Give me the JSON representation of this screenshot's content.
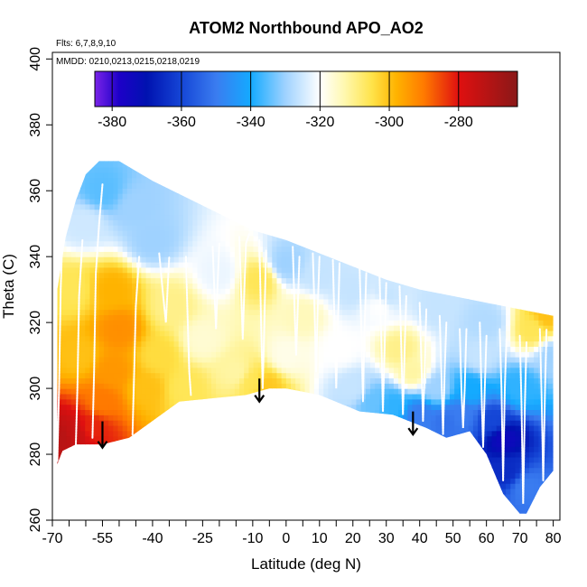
{
  "chart_data": {
    "type": "heatmap",
    "title": "ATOM2 Northbound APO_AO2",
    "flights_note": "Flts: 6,7,8,9,10",
    "dates_note": "MMDD: 0210,0213,0215,0218,0219",
    "xlabel": "Latitude (deg N)",
    "ylabel": "Theta (C)",
    "xlim": [
      -70,
      82
    ],
    "ylim": [
      260,
      402
    ],
    "x_ticks": [
      -70,
      -55,
      -40,
      -25,
      -10,
      0,
      10,
      20,
      30,
      40,
      50,
      60,
      70,
      80
    ],
    "x_minor_ticks": [
      -65,
      -60,
      -50,
      -45,
      -35,
      -30,
      -20,
      -15,
      -5,
      5,
      15,
      25,
      35,
      45,
      55,
      65,
      75
    ],
    "y_ticks": [
      260,
      280,
      300,
      320,
      340,
      360,
      380,
      400
    ],
    "colorbar": {
      "min": -385,
      "max": -263,
      "ticks": [
        -380,
        -360,
        -340,
        -320,
        -300,
        -280
      ],
      "major_lines": [
        -380,
        -360,
        -340,
        -320,
        -300,
        -280
      ],
      "stops": [
        {
          "v": -385,
          "color": "#7a24e8"
        },
        {
          "v": -378,
          "color": "#1d00c8"
        },
        {
          "v": -370,
          "color": "#0012b0"
        },
        {
          "v": -360,
          "color": "#1546d6"
        },
        {
          "v": -350,
          "color": "#3a7cf0"
        },
        {
          "v": -340,
          "color": "#14aaff"
        },
        {
          "v": -330,
          "color": "#9fd2ff"
        },
        {
          "v": -320,
          "color": "#ffffff"
        },
        {
          "v": -313,
          "color": "#fff8b0"
        },
        {
          "v": -305,
          "color": "#ffe34a"
        },
        {
          "v": -298,
          "color": "#ffb300"
        },
        {
          "v": -290,
          "color": "#ff7a00"
        },
        {
          "v": -280,
          "color": "#e01010"
        },
        {
          "v": -263,
          "color": "#8a1818"
        }
      ]
    },
    "grid": false,
    "bottom_boundary": [
      [
        -68.5,
        277
      ],
      [
        -67,
        281
      ],
      [
        -63,
        283
      ],
      [
        -55,
        283
      ],
      [
        -47,
        285
      ],
      [
        -32,
        296
      ],
      [
        -22,
        297
      ],
      [
        -12,
        298
      ],
      [
        -5,
        300
      ],
      [
        0,
        300
      ],
      [
        10,
        298
      ],
      [
        22,
        293
      ],
      [
        32,
        292
      ],
      [
        42,
        288
      ],
      [
        48,
        285
      ],
      [
        55,
        287
      ],
      [
        60,
        280
      ],
      [
        65,
        268
      ],
      [
        70,
        262
      ],
      [
        72,
        262
      ],
      [
        76,
        270
      ],
      [
        80,
        275
      ]
    ],
    "top_boundary": [
      [
        -68.5,
        330
      ],
      [
        -66,
        346
      ],
      [
        -63,
        357
      ],
      [
        -60,
        365
      ],
      [
        -56,
        369
      ],
      [
        -50,
        369
      ],
      [
        -40,
        363
      ],
      [
        -30,
        358
      ],
      [
        -20,
        353
      ],
      [
        -10,
        348
      ],
      [
        0,
        345
      ],
      [
        10,
        341
      ],
      [
        20,
        337
      ],
      [
        30,
        333
      ],
      [
        40,
        330
      ],
      [
        50,
        328
      ],
      [
        60,
        326
      ],
      [
        70,
        324
      ],
      [
        80,
        322
      ]
    ],
    "field_points": [
      {
        "lat": -67,
        "theta": 285,
        "v": -272
      },
      {
        "lat": -63,
        "theta": 286,
        "v": -275
      },
      {
        "lat": -58,
        "theta": 288,
        "v": -282
      },
      {
        "lat": -55,
        "theta": 296,
        "v": -290
      },
      {
        "lat": -52,
        "theta": 305,
        "v": -294
      },
      {
        "lat": -50,
        "theta": 318,
        "v": -293
      },
      {
        "lat": -52,
        "theta": 330,
        "v": -298
      },
      {
        "lat": -62,
        "theta": 310,
        "v": -300
      },
      {
        "lat": -64,
        "theta": 330,
        "v": -306
      },
      {
        "lat": -60,
        "theta": 350,
        "v": -325
      },
      {
        "lat": -55,
        "theta": 360,
        "v": -335
      },
      {
        "lat": -45,
        "theta": 355,
        "v": -330
      },
      {
        "lat": -42,
        "theta": 300,
        "v": -300
      },
      {
        "lat": -38,
        "theta": 310,
        "v": -304
      },
      {
        "lat": -34,
        "theta": 325,
        "v": -310
      },
      {
        "lat": -30,
        "theta": 300,
        "v": -306
      },
      {
        "lat": -25,
        "theta": 315,
        "v": -316
      },
      {
        "lat": -20,
        "theta": 335,
        "v": -322
      },
      {
        "lat": -15,
        "theta": 305,
        "v": -312
      },
      {
        "lat": -10,
        "theta": 302,
        "v": -306
      },
      {
        "lat": -6,
        "theta": 301,
        "v": -301
      },
      {
        "lat": -8,
        "theta": 333,
        "v": -306
      },
      {
        "lat": 0,
        "theta": 310,
        "v": -318
      },
      {
        "lat": 5,
        "theta": 322,
        "v": -314
      },
      {
        "lat": 10,
        "theta": 335,
        "v": -326
      },
      {
        "lat": 16,
        "theta": 312,
        "v": -320
      },
      {
        "lat": 20,
        "theta": 300,
        "v": -326
      },
      {
        "lat": 26,
        "theta": 296,
        "v": -334
      },
      {
        "lat": 28,
        "theta": 325,
        "v": -320
      },
      {
        "lat": 34,
        "theta": 312,
        "v": -310
      },
      {
        "lat": 38,
        "theta": 305,
        "v": -312
      },
      {
        "lat": 32,
        "theta": 295,
        "v": -338
      },
      {
        "lat": 40,
        "theta": 292,
        "v": -350
      },
      {
        "lat": 45,
        "theta": 300,
        "v": -330
      },
      {
        "lat": 48,
        "theta": 290,
        "v": -352
      },
      {
        "lat": 52,
        "theta": 292,
        "v": -350
      },
      {
        "lat": 55,
        "theta": 300,
        "v": -340
      },
      {
        "lat": 58,
        "theta": 310,
        "v": -326
      },
      {
        "lat": 62,
        "theta": 290,
        "v": -360
      },
      {
        "lat": 65,
        "theta": 285,
        "v": -374
      },
      {
        "lat": 66,
        "theta": 275,
        "v": -365
      },
      {
        "lat": 70,
        "theta": 300,
        "v": -338
      },
      {
        "lat": 72,
        "theta": 270,
        "v": -350
      },
      {
        "lat": 74,
        "theta": 318,
        "v": -306
      },
      {
        "lat": 78,
        "theta": 322,
        "v": -300
      },
      {
        "lat": 80,
        "theta": 310,
        "v": -330
      },
      {
        "lat": 45,
        "theta": 325,
        "v": -326
      },
      {
        "lat": 60,
        "theta": 320,
        "v": -328
      },
      {
        "lat": 20,
        "theta": 330,
        "v": -326
      },
      {
        "lat": -40,
        "theta": 345,
        "v": -330
      },
      {
        "lat": 0,
        "theta": 338,
        "v": -330
      },
      {
        "lat": 30,
        "theta": 328,
        "v": -326
      }
    ],
    "flight_tracks": [
      [
        [
          -68.5,
          278
        ],
        [
          -68,
          300
        ],
        [
          -67.5,
          330
        ],
        [
          -67,
          346
        ]
      ],
      [
        [
          -63,
          282
        ],
        [
          -62.5,
          300
        ],
        [
          -62,
          328
        ],
        [
          -61,
          345
        ]
      ],
      [
        [
          -58,
          285
        ],
        [
          -57.5,
          305
        ],
        [
          -57,
          335
        ],
        [
          -56,
          350
        ],
        [
          -55,
          362
        ]
      ],
      [
        [
          -46,
          286
        ],
        [
          -45.5,
          305
        ],
        [
          -45,
          325
        ],
        [
          -44,
          340
        ]
      ],
      [
        [
          -38,
          341
        ],
        [
          -37,
          330
        ],
        [
          -36,
          320
        ],
        [
          -35,
          340
        ]
      ],
      [
        [
          -30,
          340
        ],
        [
          -29.5,
          322
        ],
        [
          -29,
          305
        ],
        [
          -28.5,
          298
        ]
      ],
      [
        [
          -22,
          343
        ],
        [
          -21.5,
          330
        ],
        [
          -21,
          318
        ],
        [
          -20.5,
          332
        ],
        [
          -20,
          344
        ]
      ],
      [
        [
          -14,
          346
        ],
        [
          -13.5,
          330
        ],
        [
          -13,
          315
        ],
        [
          -12.5,
          330
        ],
        [
          -12,
          344
        ],
        [
          -11,
          347
        ]
      ],
      [
        [
          -8,
          345
        ],
        [
          -7.5,
          320
        ],
        [
          -7,
          300
        ],
        [
          -6.5,
          320
        ],
        [
          -6,
          342
        ]
      ],
      [
        [
          2,
          343
        ],
        [
          2.5,
          325
        ],
        [
          3,
          310
        ],
        [
          3.5,
          325
        ],
        [
          4,
          340
        ]
      ],
      [
        [
          8,
          341
        ],
        [
          8.5,
          325
        ],
        [
          9,
          305
        ],
        [
          9.5,
          325
        ],
        [
          10,
          340
        ]
      ],
      [
        [
          14,
          339
        ],
        [
          14.5,
          320
        ],
        [
          15,
          300
        ],
        [
          15.5,
          318
        ],
        [
          16,
          338
        ]
      ],
      [
        [
          22,
          337
        ],
        [
          22.5,
          318
        ],
        [
          23,
          296
        ],
        [
          23.5,
          318
        ],
        [
          24,
          335
        ]
      ],
      [
        [
          28,
          334
        ],
        [
          28.5,
          315
        ],
        [
          29,
          293
        ],
        [
          29.5,
          312
        ],
        [
          30,
          332
        ]
      ],
      [
        [
          34,
          331
        ],
        [
          34.5,
          312
        ],
        [
          35,
          292
        ],
        [
          35.5,
          312
        ],
        [
          36,
          328
        ]
      ],
      [
        [
          40,
          326
        ],
        [
          40.5,
          308
        ],
        [
          41,
          290
        ],
        [
          41.5,
          305
        ],
        [
          42,
          324
        ]
      ],
      [
        [
          46,
          322
        ],
        [
          46.5,
          305
        ],
        [
          47,
          286
        ],
        [
          47.5,
          305
        ],
        [
          48,
          320
        ]
      ],
      [
        [
          52,
          318
        ],
        [
          52.5,
          300
        ],
        [
          53,
          288
        ],
        [
          53.5,
          300
        ],
        [
          54,
          318
        ]
      ],
      [
        [
          58,
          320
        ],
        [
          58.5,
          300
        ],
        [
          59,
          282
        ],
        [
          59.5,
          300
        ],
        [
          60,
          316
        ]
      ],
      [
        [
          64,
          318
        ],
        [
          64.5,
          300
        ],
        [
          65,
          272
        ],
        [
          65.5,
          300
        ],
        [
          66,
          315
        ]
      ],
      [
        [
          70,
          316
        ],
        [
          70.5,
          295
        ],
        [
          71,
          265
        ],
        [
          71.5,
          295
        ],
        [
          72,
          314
        ]
      ],
      [
        [
          76,
          318
        ],
        [
          76.5,
          298
        ],
        [
          77,
          272
        ],
        [
          77.5,
          298
        ],
        [
          78,
          318
        ]
      ]
    ],
    "arrows": [
      {
        "lat": -55,
        "theta_top": 290,
        "theta_tip": 282
      },
      {
        "lat": -8,
        "theta_top": 303,
        "theta_tip": 296
      },
      {
        "lat": 38,
        "theta_top": 293,
        "theta_tip": 286
      }
    ]
  }
}
